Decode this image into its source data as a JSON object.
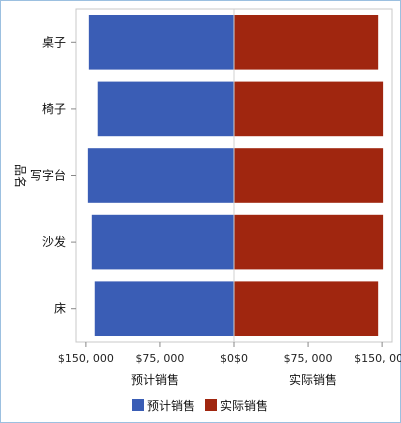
{
  "chart_data": {
    "type": "bar",
    "orientation": "horizontal",
    "layout": "butterfly",
    "categories": [
      "桌子",
      "椅子",
      "写字台",
      "沙发",
      "床"
    ],
    "y_axis_label": "品名",
    "series": [
      {
        "name": "预计销售",
        "values": [
          147000,
          138000,
          148000,
          144000,
          141000
        ],
        "color": "#3a5db5",
        "xlabel": "预计销售",
        "xlim": [
          0,
          160000
        ],
        "ticks": [
          150000,
          75000,
          0
        ],
        "tick_labels": [
          "$150, 000",
          "$75, 000",
          "$0"
        ]
      },
      {
        "name": "实际销售",
        "values": [
          146000,
          151000,
          151000,
          151000,
          146000
        ],
        "color": "#a0260f",
        "xlabel": "实际销售",
        "xlim": [
          0,
          160000
        ],
        "ticks": [
          0,
          75000,
          150000
        ],
        "tick_labels": [
          "$0",
          "$75, 000",
          "$150, 000"
        ]
      }
    ],
    "legend_position": "bottom",
    "grid": false
  }
}
